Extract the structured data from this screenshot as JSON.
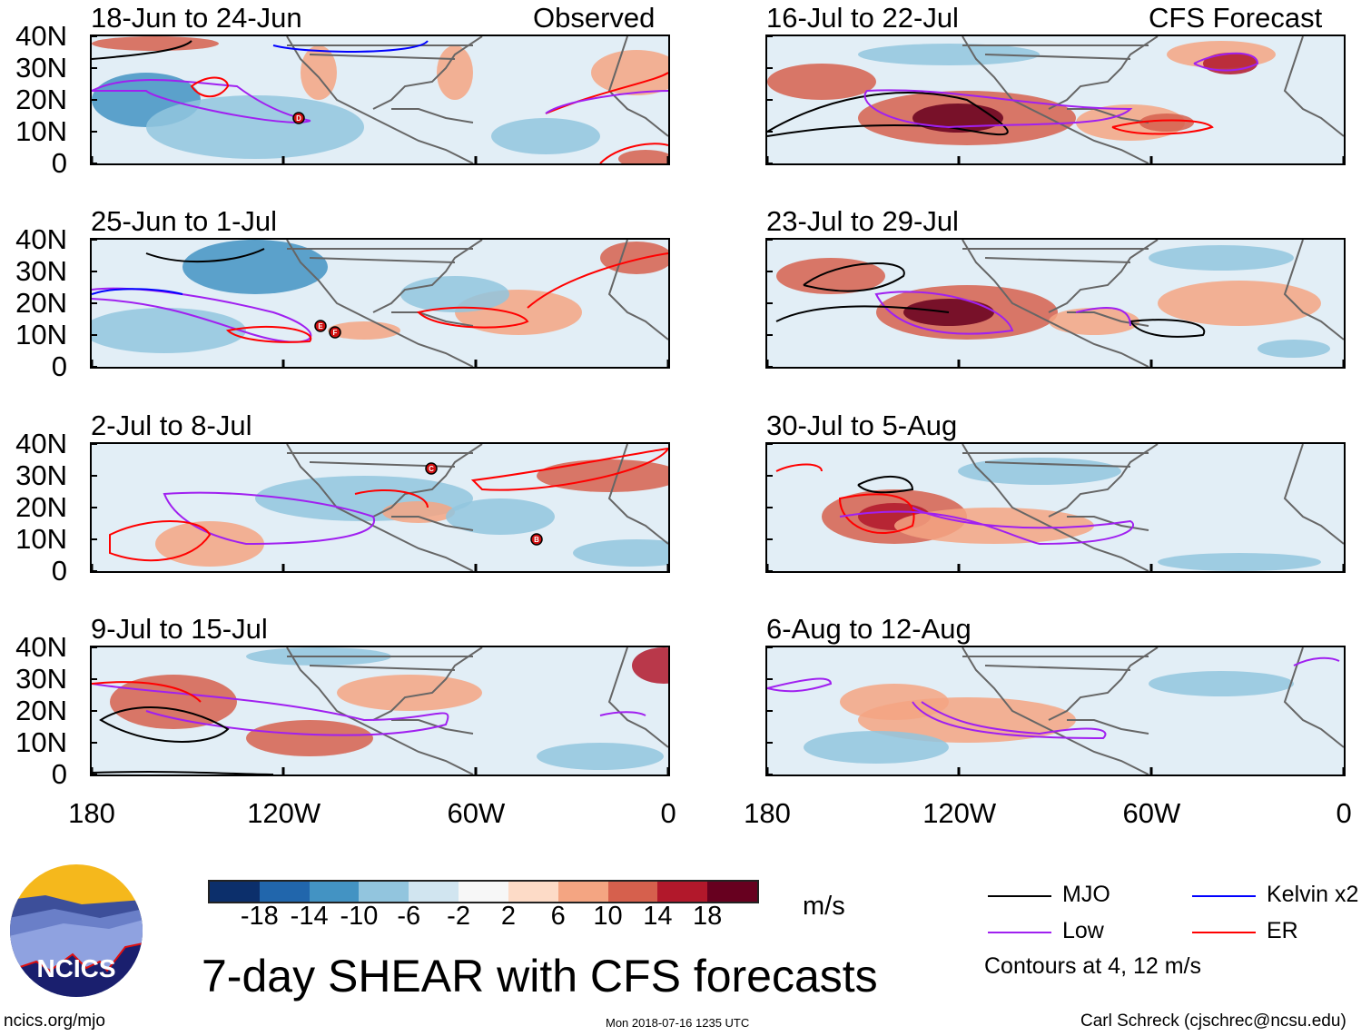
{
  "observed_label": "Observed",
  "forecast_label": "CFS Forecast",
  "y_ticks": [
    "40N",
    "30N",
    "20N",
    "10N",
    "0"
  ],
  "x_ticks": [
    "180",
    "120W",
    "60W",
    "0"
  ],
  "panels": [
    {
      "title": "18-Jun to 24-Jun",
      "type": "observed",
      "storms": [
        {
          "letter": "D"
        }
      ]
    },
    {
      "title": "25-Jun to 1-Jul",
      "type": "observed",
      "storms": [
        {
          "letter": "E"
        },
        {
          "letter": "F"
        }
      ]
    },
    {
      "title": "2-Jul to 8-Jul",
      "type": "observed",
      "storms": [
        {
          "letter": "C"
        },
        {
          "letter": "B"
        }
      ]
    },
    {
      "title": "9-Jul to 15-Jul",
      "type": "observed",
      "storms": []
    },
    {
      "title": "16-Jul to 22-Jul",
      "type": "forecast",
      "storms": []
    },
    {
      "title": "23-Jul to 29-Jul",
      "type": "forecast",
      "storms": []
    },
    {
      "title": "30-Jul to 5-Aug",
      "type": "forecast",
      "storms": []
    },
    {
      "title": "6-Aug to 12-Aug",
      "type": "forecast",
      "storms": []
    }
  ],
  "colorbar": {
    "colors": [
      "#0c2f6b",
      "#2166ac",
      "#4393c3",
      "#92c5de",
      "#d1e5f0",
      "#f7f7f7",
      "#fddbc7",
      "#f4a582",
      "#d6604d",
      "#b2182b",
      "#67001f"
    ],
    "labels": [
      "-18",
      "-14",
      "-10",
      "-6",
      "-2",
      "2",
      "6",
      "10",
      "14",
      "18"
    ],
    "units": "m/s"
  },
  "legend": {
    "items": [
      {
        "label": "MJO",
        "color": "#000000"
      },
      {
        "label": "Kelvin x2",
        "color": "#0000ff"
      },
      {
        "label": "Low",
        "color": "#a020f0"
      },
      {
        "label": "ER",
        "color": "#ff0000"
      }
    ],
    "contours_note": "Contours at 4, 12 m/s"
  },
  "logo_text": "NCICS",
  "title": "7-day SHEAR with CFS forecasts",
  "footer": {
    "url": "ncics.org/mjo",
    "timestamp": "Mon 2018-07-16 1235 UTC",
    "credit": "Carl Schreck (cjschrec@ncsu.edu)"
  }
}
